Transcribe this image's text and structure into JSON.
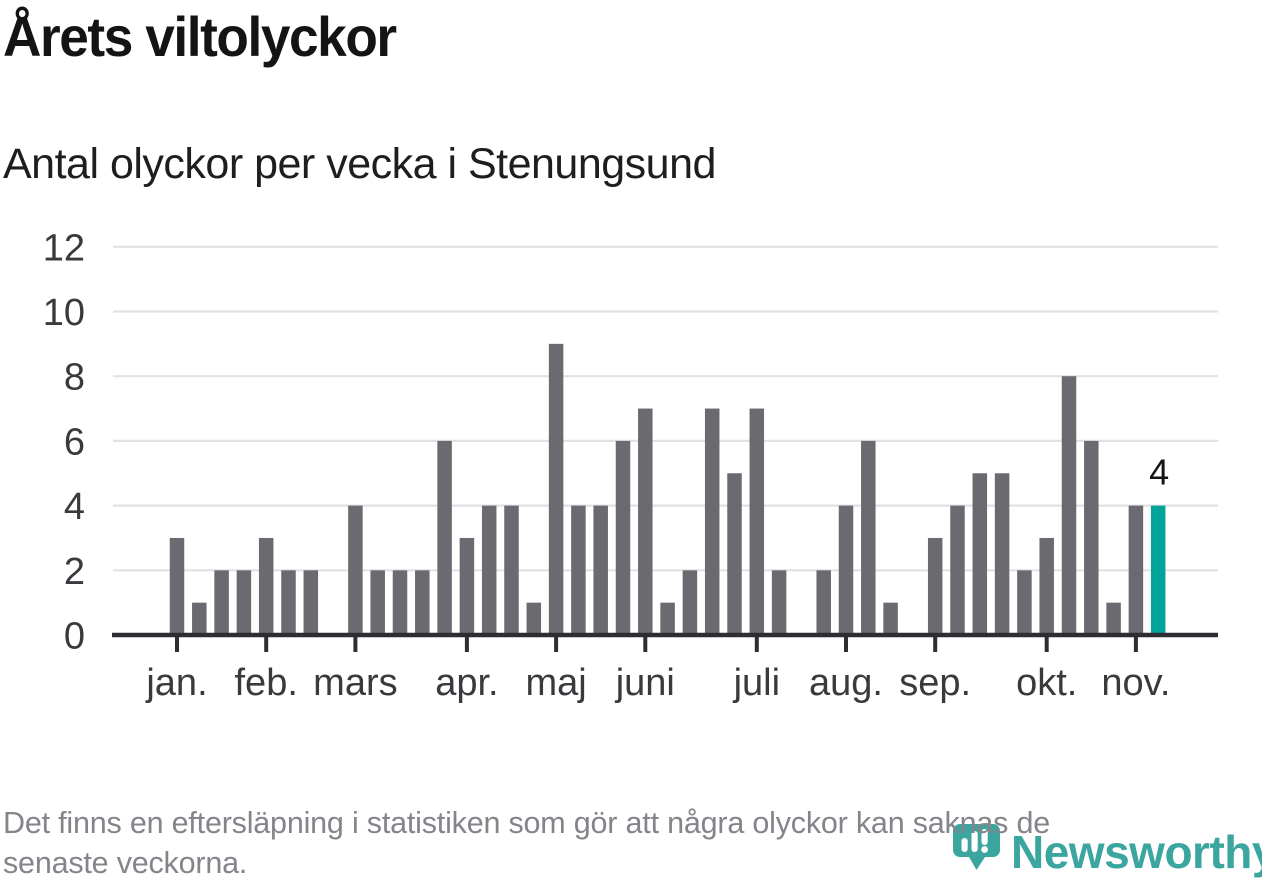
{
  "header": {
    "title": "Årets viltolyckor",
    "subtitle": "Antal olyckor per vecka i Stenungsund"
  },
  "chart_data": {
    "type": "bar",
    "title": "Årets viltolyckor",
    "subtitle": "Antal olyckor per vecka i Stenungsund",
    "x_description": "veckor januari–november, en stapel per vecka",
    "values": [
      3,
      1,
      2,
      2,
      3,
      2,
      2,
      0,
      4,
      2,
      2,
      2,
      6,
      3,
      4,
      4,
      1,
      9,
      4,
      4,
      6,
      7,
      1,
      2,
      7,
      5,
      7,
      2,
      0,
      2,
      4,
      6,
      1,
      0,
      3,
      4,
      5,
      5,
      2,
      3,
      8,
      6,
      1,
      4,
      4
    ],
    "month_ticks": [
      {
        "label": "jan.",
        "week_index": 0
      },
      {
        "label": "feb.",
        "week_index": 4
      },
      {
        "label": "mars",
        "week_index": 8
      },
      {
        "label": "apr.",
        "week_index": 13
      },
      {
        "label": "maj",
        "week_index": 17
      },
      {
        "label": "juni",
        "week_index": 21
      },
      {
        "label": "juli",
        "week_index": 26
      },
      {
        "label": "aug.",
        "week_index": 30
      },
      {
        "label": "sep.",
        "week_index": 34
      },
      {
        "label": "okt.",
        "week_index": 39
      },
      {
        "label": "nov.",
        "week_index": 43
      }
    ],
    "y_ticks": [
      0,
      2,
      4,
      6,
      8,
      10,
      12
    ],
    "ylim": [
      0,
      12
    ],
    "grid": true,
    "legend": "none",
    "highlight_index": 44,
    "highlight_label": "4",
    "colors": {
      "bar": "#6b6a70",
      "highlight": "#00a49b",
      "grid": "#e2e2e4",
      "axis": "#2e2e32",
      "tick_text": "#3a3a3e",
      "annotation": "#141414"
    }
  },
  "footer": {
    "note_lines": [
      "Det finns en eftersläpning i statistiken som gör att några olyckor kan saknas de",
      "senaste veckorna."
    ],
    "brand": {
      "name": "Newsworthy",
      "color": "#3aa69f"
    }
  }
}
